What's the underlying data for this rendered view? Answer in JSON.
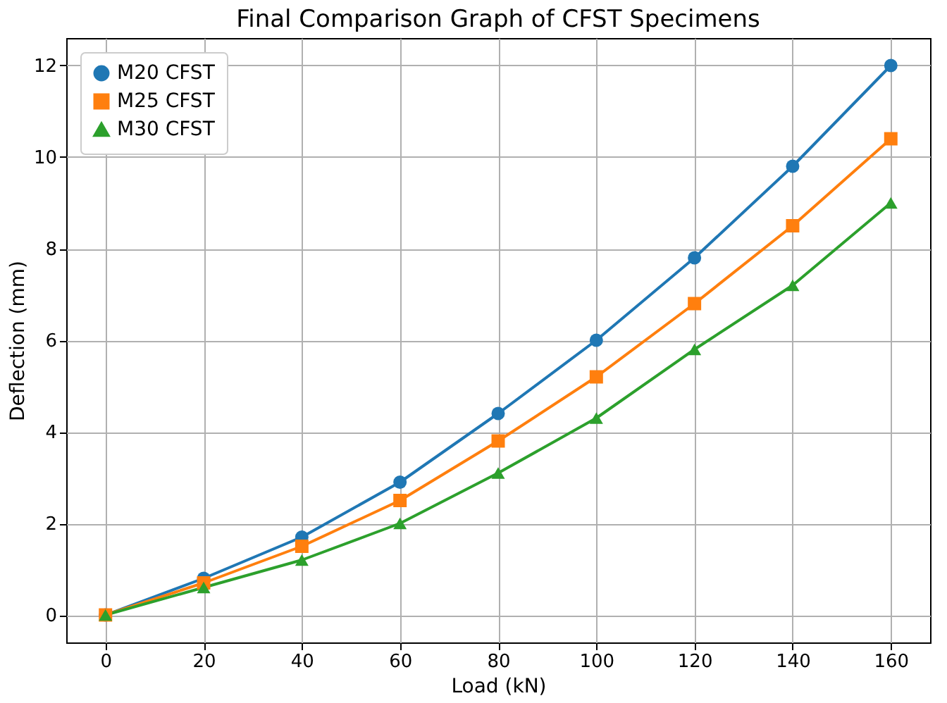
{
  "chart_data": {
    "type": "line",
    "title": "Final Comparison Graph of CFST Specimens",
    "xlabel": "Load (kN)",
    "ylabel": "Deflection (mm)",
    "x": [
      0,
      20,
      40,
      60,
      80,
      100,
      120,
      140,
      160
    ],
    "series": [
      {
        "name": "M20 CFST",
        "color": "#1f77b4",
        "marker": "circle",
        "values": [
          0,
          0.8,
          1.7,
          2.9,
          4.4,
          6.0,
          7.8,
          9.8,
          12.0
        ]
      },
      {
        "name": "M25 CFST",
        "color": "#ff7f0e",
        "marker": "square",
        "values": [
          0,
          0.7,
          1.5,
          2.5,
          3.8,
          5.2,
          6.8,
          8.5,
          10.4
        ]
      },
      {
        "name": "M30 CFST",
        "color": "#2ca02c",
        "marker": "triangle",
        "values": [
          0,
          0.6,
          1.2,
          2.0,
          3.1,
          4.3,
          5.8,
          7.2,
          9.0
        ]
      }
    ],
    "xlim": [
      -8,
      168
    ],
    "xticks": [
      0,
      20,
      40,
      60,
      80,
      100,
      120,
      140,
      160
    ],
    "ylim": [
      -0.6,
      12.6
    ],
    "yticks": [
      0,
      2,
      4,
      6,
      8,
      10,
      12
    ],
    "grid": true,
    "legend": "top left",
    "line_style": "solid"
  }
}
